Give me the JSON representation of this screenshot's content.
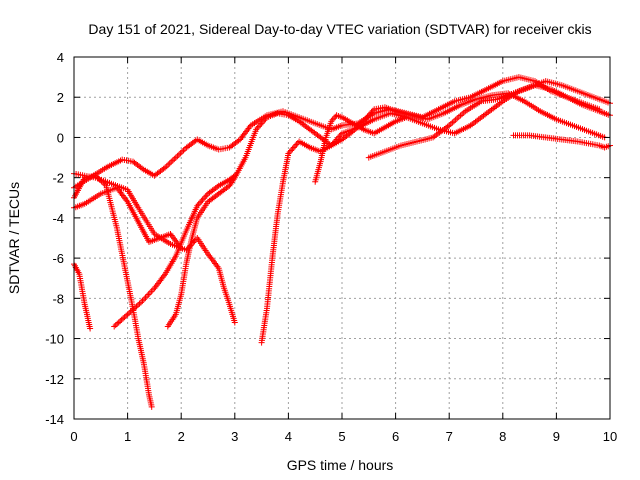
{
  "chart_data": {
    "type": "scatter",
    "title": "Day 151 of 2021, Sidereal Day-to-day VTEC variation (SDTVAR) for receiver ckis",
    "xlabel": "GPS time / hours",
    "ylabel": "SDTVAR / TECUs",
    "xlim": [
      0,
      10
    ],
    "ylim": [
      -14,
      4
    ],
    "xticks": [
      0,
      1,
      2,
      3,
      4,
      5,
      6,
      7,
      8,
      9,
      10
    ],
    "yticks": [
      -14,
      -12,
      -10,
      -8,
      -6,
      -4,
      -2,
      0,
      2,
      4
    ],
    "grid": true,
    "marker": "plus",
    "color": "#ff0000",
    "series": [
      {
        "x": [
          0,
          0.1,
          0.2,
          0.3
        ],
        "y": [
          -6.3,
          -6.8,
          -8.3,
          -9.5
        ]
      },
      {
        "x": [
          0,
          0.2,
          0.4,
          0.6,
          0.8,
          0.95,
          1.1,
          1.2,
          1.3,
          1.4,
          1.45
        ],
        "y": [
          -3.0,
          -2.0,
          -1.9,
          -2.4,
          -4.5,
          -6.5,
          -8.5,
          -10.0,
          -11.2,
          -12.8,
          -13.4
        ]
      },
      {
        "x": [
          0,
          0.2,
          0.4,
          0.7,
          1.0,
          1.2,
          1.5,
          1.8,
          2.1,
          2.3,
          2.5,
          2.7,
          2.8,
          2.9,
          3.0
        ],
        "y": [
          -1.8,
          -1.9,
          -2.0,
          -2.3,
          -2.6,
          -3.5,
          -4.8,
          -5.3,
          -5.6,
          -5.0,
          -5.8,
          -6.5,
          -7.5,
          -8.3,
          -9.2
        ]
      },
      {
        "x": [
          0,
          0.2,
          0.5,
          0.8,
          1.0,
          1.2,
          1.4,
          1.6,
          1.8,
          2.0
        ],
        "y": [
          -3.5,
          -3.3,
          -2.8,
          -2.5,
          -3.2,
          -4.2,
          -5.2,
          -5.0,
          -4.8,
          -5.5
        ]
      },
      {
        "x": [
          0,
          0.3,
          0.6,
          0.9,
          1.1,
          1.3,
          1.5,
          1.7,
          1.9,
          2.1,
          2.3,
          2.5,
          2.7,
          2.9,
          3.1,
          3.3,
          3.6,
          3.9,
          4.2,
          4.5,
          4.8,
          5.0,
          5.3,
          5.6,
          5.9,
          6.2,
          6.5,
          6.8,
          7.1,
          7.4,
          7.7,
          8.0,
          8.3,
          8.6,
          8.9,
          9.2,
          9.5,
          9.8
        ],
        "y": [
          -2.5,
          -2.0,
          -1.5,
          -1.1,
          -1.2,
          -1.6,
          -1.9,
          -1.5,
          -1.0,
          -0.5,
          -0.1,
          -0.4,
          -0.6,
          -0.5,
          -0.1,
          0.6,
          1.1,
          1.3,
          1.0,
          0.7,
          0.4,
          0.6,
          0.7,
          1.2,
          1.4,
          1.2,
          1.0,
          1.4,
          1.8,
          2.0,
          2.4,
          2.8,
          3.0,
          2.8,
          2.3,
          2.0,
          1.7,
          1.4
        ]
      },
      {
        "x": [
          0.75,
          1.0,
          1.25,
          1.5,
          1.7,
          1.9,
          2.1,
          2.3,
          2.5,
          2.7,
          2.9,
          3.0
        ],
        "y": [
          -9.4,
          -8.8,
          -8.2,
          -7.5,
          -6.8,
          -5.9,
          -4.6,
          -3.4,
          -2.8,
          -2.4,
          -2.1,
          -1.9
        ]
      },
      {
        "x": [
          1.75,
          1.9,
          2.0,
          2.1,
          2.2,
          2.3,
          2.5,
          2.7,
          2.9,
          3.0,
          3.2,
          3.4,
          3.6,
          3.8,
          4.0,
          4.2,
          4.4,
          4.6,
          4.8,
          5.0,
          5.2,
          5.4,
          5.6,
          5.8,
          6.0,
          6.3,
          6.6,
          6.9,
          7.2,
          7.5,
          7.8,
          8.1,
          8.4,
          8.7,
          9.0,
          9.3,
          9.6,
          9.9
        ],
        "y": [
          -9.4,
          -8.8,
          -7.8,
          -6.2,
          -5.0,
          -4.0,
          -3.2,
          -2.8,
          -2.4,
          -2.0,
          -1.0,
          0.4,
          1.0,
          1.2,
          1.1,
          0.8,
          0.4,
          0.0,
          -0.4,
          -0.1,
          0.3,
          0.8,
          1.4,
          1.5,
          1.3,
          1.1,
          0.9,
          1.2,
          1.6,
          1.9,
          2.1,
          2.2,
          1.8,
          1.3,
          0.9,
          0.6,
          0.3,
          0.0
        ]
      },
      {
        "x": [
          3.5,
          3.6,
          3.7,
          3.8,
          3.9,
          4.0,
          4.2,
          4.4,
          4.6,
          4.8,
          5.0,
          5.3,
          5.6,
          5.9,
          6.2,
          6.5,
          6.8,
          7.1,
          7.4,
          7.7,
          8.0,
          8.3,
          8.6,
          8.9,
          9.2,
          9.5,
          9.8,
          10.0
        ],
        "y": [
          -10.2,
          -8.5,
          -6.0,
          -3.8,
          -2.2,
          -0.8,
          -0.2,
          -0.5,
          -0.7,
          -0.4,
          0.2,
          0.5,
          0.9,
          1.2,
          1.0,
          0.7,
          0.4,
          0.2,
          0.6,
          1.2,
          1.8,
          2.3,
          2.6,
          2.4,
          2.0,
          1.6,
          1.3,
          1.1
        ]
      },
      {
        "x": [
          4.5,
          4.6,
          4.7,
          4.8,
          4.9,
          5.0,
          5.2,
          5.4,
          5.6,
          5.8,
          6.0,
          6.2
        ],
        "y": [
          -2.2,
          -1.2,
          0.0,
          0.8,
          1.1,
          1.0,
          0.7,
          0.4,
          0.2,
          0.5,
          0.8,
          1.0
        ]
      },
      {
        "x": [
          5.5,
          5.8,
          6.1,
          6.4,
          6.7,
          7.0,
          7.3,
          7.6,
          7.9,
          8.2,
          8.5,
          8.8,
          9.1,
          9.4,
          9.7,
          10.0
        ],
        "y": [
          -1.0,
          -0.7,
          -0.4,
          -0.2,
          0.0,
          0.6,
          1.3,
          1.8,
          1.9,
          2.2,
          2.5,
          2.8,
          2.6,
          2.3,
          2.0,
          1.7
        ]
      },
      {
        "x": [
          8.2,
          8.5,
          8.8,
          9.1,
          9.4,
          9.6,
          9.8,
          9.9,
          10.0
        ],
        "y": [
          0.1,
          0.1,
          0.0,
          -0.1,
          -0.2,
          -0.3,
          -0.4,
          -0.5,
          -0.4
        ]
      }
    ]
  }
}
